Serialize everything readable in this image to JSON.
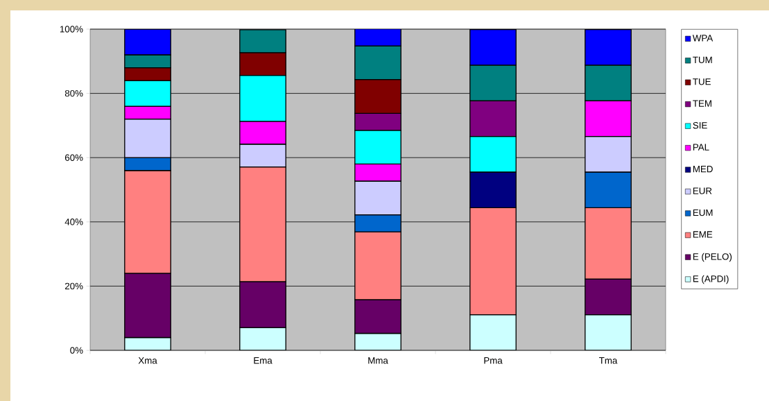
{
  "chart_data": {
    "type": "bar",
    "stacked": true,
    "categories": [
      "Xma",
      "Ema",
      "Mma",
      "Pma",
      "Tma"
    ],
    "ylim": [
      0,
      100
    ],
    "yticks": [
      {
        "value": 0,
        "label": "0%"
      },
      {
        "value": 20,
        "label": "20%"
      },
      {
        "value": 40,
        "label": "40%"
      },
      {
        "value": 60,
        "label": "60%"
      },
      {
        "value": 80,
        "label": "80%"
      },
      {
        "value": 100,
        "label": "100%"
      }
    ],
    "grid": "y",
    "legend": "right",
    "series": [
      {
        "name": "E (APDI)",
        "color": "#ccffff",
        "values": [
          4,
          7.1,
          5.3,
          11.1,
          11.1
        ]
      },
      {
        "name": "E (PELO)",
        "color": "#660066",
        "values": [
          20,
          14.3,
          10.5,
          null,
          11.1
        ]
      },
      {
        "name": "EME",
        "color": "#ff8080",
        "values": [
          32,
          35.7,
          21.1,
          33.3,
          22.2
        ]
      },
      {
        "name": "EUM",
        "color": "#0066cc",
        "values": [
          4,
          null,
          5.3,
          null,
          11.1
        ]
      },
      {
        "name": "EUR",
        "color": "#ccccff",
        "values": [
          12,
          7.1,
          10.5,
          null,
          11.1
        ]
      },
      {
        "name": "MED",
        "color": "#000080",
        "values": [
          null,
          null,
          null,
          11.1,
          null
        ]
      },
      {
        "name": "PAL",
        "color": "#ff00ff",
        "values": [
          4,
          7.1,
          5.3,
          null,
          11.1
        ]
      },
      {
        "name": "SIE",
        "color": "#00ffff",
        "values": [
          8,
          14.3,
          10.5,
          11.1,
          null
        ]
      },
      {
        "name": "TEM",
        "color": "#800080",
        "values": [
          null,
          null,
          5.3,
          11.1,
          null
        ]
      },
      {
        "name": "TUE",
        "color": "#800000",
        "values": [
          4,
          7.1,
          10.5,
          null,
          null
        ]
      },
      {
        "name": "TUM",
        "color": "#008080",
        "values": [
          4,
          7.1,
          10.5,
          11.1,
          11.1
        ]
      },
      {
        "name": "WPA",
        "color": "#0000ff",
        "values": [
          8,
          null,
          5.3,
          11.1,
          11.1
        ]
      }
    ]
  }
}
